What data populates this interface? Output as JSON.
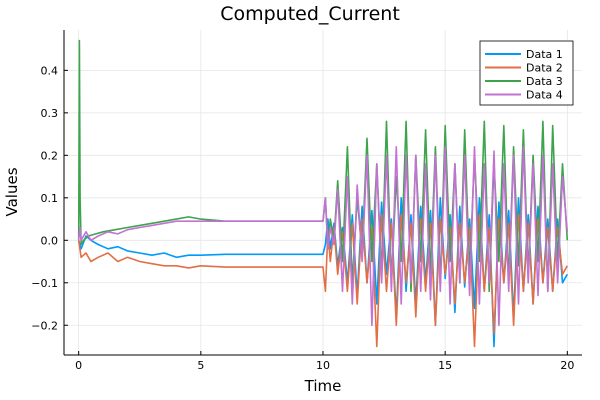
{
  "chart_data": {
    "type": "line",
    "title": "Computed_Current",
    "xlabel": "Time",
    "ylabel": "Values",
    "xlim": [
      -0.6,
      20.6
    ],
    "ylim": [
      -0.27,
      0.495
    ],
    "xticks": [
      0,
      5,
      10,
      15,
      20
    ],
    "xtick_labels": [
      "0",
      "5",
      "10",
      "15",
      "20"
    ],
    "yticks": [
      -0.2,
      -0.1,
      0.0,
      0.1,
      0.2,
      0.3,
      0.4
    ],
    "ytick_labels": [
      "−0.2",
      "−0.1",
      "0.0",
      "0.1",
      "0.2",
      "0.3",
      "0.4"
    ],
    "grid": true,
    "legend_position": "top-right",
    "series": [
      {
        "name": "Data 1",
        "color": "#009AFA",
        "x": [
          0,
          0.05,
          0.1,
          0.3,
          0.5,
          0.8,
          1.2,
          1.6,
          2,
          2.5,
          3,
          3.5,
          4,
          4.5,
          5,
          6,
          7,
          8,
          9,
          10,
          10.1,
          10.2,
          10.3,
          10.45,
          10.6,
          10.8,
          11,
          11.2,
          11.4,
          11.6,
          11.8,
          12,
          12.2,
          12.4,
          12.6,
          12.8,
          13,
          13.2,
          13.4,
          13.6,
          13.8,
          14,
          14.2,
          14.4,
          14.6,
          14.8,
          15,
          15.2,
          15.4,
          15.6,
          15.8,
          16,
          16.2,
          16.4,
          16.6,
          16.8,
          17,
          17.2,
          17.4,
          17.6,
          17.8,
          18,
          18.2,
          18.4,
          18.6,
          18.8,
          19,
          19.2,
          19.4,
          19.6,
          19.8,
          20
        ],
        "y": [
          0.0,
          -0.01,
          -0.02,
          0.01,
          0.0,
          -0.01,
          -0.02,
          -0.015,
          -0.025,
          -0.03,
          -0.035,
          -0.03,
          -0.04,
          -0.035,
          -0.035,
          -0.033,
          -0.033,
          -0.033,
          -0.033,
          -0.033,
          -0.01,
          0.05,
          -0.02,
          0.04,
          -0.06,
          0.03,
          -0.1,
          0.06,
          -0.13,
          0.08,
          -0.1,
          0.07,
          -0.15,
          0.09,
          -0.08,
          0.05,
          -0.18,
          0.1,
          -0.12,
          0.06,
          -0.15,
          0.08,
          -0.1,
          0.07,
          -0.2,
          0.1,
          -0.09,
          0.06,
          -0.17,
          0.08,
          -0.11,
          0.05,
          -0.16,
          0.1,
          -0.12,
          0.06,
          -0.25,
          0.09,
          -0.1,
          0.07,
          -0.18,
          0.1,
          -0.12,
          0.06,
          -0.15,
          0.08,
          -0.1,
          0.05,
          -0.12,
          0.05,
          -0.1,
          -0.08
        ]
      },
      {
        "name": "Data 2",
        "color": "#E26F46",
        "x": [
          0,
          0.05,
          0.1,
          0.3,
          0.5,
          0.8,
          1.2,
          1.6,
          2,
          2.5,
          3,
          3.5,
          4,
          4.5,
          5,
          6,
          7,
          8,
          9,
          10,
          10.1,
          10.2,
          10.3,
          10.45,
          10.6,
          10.8,
          11,
          11.2,
          11.4,
          11.6,
          11.8,
          12,
          12.2,
          12.4,
          12.6,
          12.8,
          13,
          13.2,
          13.4,
          13.6,
          13.8,
          14,
          14.2,
          14.4,
          14.6,
          14.8,
          15,
          15.2,
          15.4,
          15.6,
          15.8,
          16,
          16.2,
          16.4,
          16.6,
          16.8,
          17,
          17.2,
          17.4,
          17.6,
          17.8,
          18,
          18.2,
          18.4,
          18.6,
          18.8,
          19,
          19.2,
          19.4,
          19.6,
          19.8,
          20
        ],
        "y": [
          0.0,
          -0.02,
          -0.04,
          -0.03,
          -0.05,
          -0.04,
          -0.03,
          -0.05,
          -0.04,
          -0.05,
          -0.055,
          -0.06,
          -0.06,
          -0.065,
          -0.06,
          -0.063,
          -0.063,
          -0.063,
          -0.063,
          -0.063,
          -0.12,
          0.02,
          -0.05,
          0.03,
          -0.08,
          0.02,
          -0.12,
          0.04,
          -0.15,
          0.05,
          -0.1,
          0.03,
          -0.25,
          0.06,
          -0.12,
          0.04,
          -0.2,
          0.06,
          -0.1,
          0.04,
          -0.18,
          0.05,
          -0.12,
          0.04,
          -0.2,
          0.05,
          -0.08,
          0.03,
          -0.15,
          0.04,
          -0.1,
          0.03,
          -0.25,
          0.06,
          -0.12,
          0.03,
          -0.22,
          0.05,
          -0.1,
          0.04,
          -0.2,
          0.06,
          -0.12,
          0.04,
          -0.15,
          0.05,
          -0.1,
          0.03,
          -0.12,
          0.03,
          -0.08,
          -0.06
        ]
      },
      {
        "name": "Data 3",
        "color": "#3DA44D",
        "x": [
          0,
          0.03,
          0.06,
          0.1,
          0.2,
          0.4,
          0.7,
          1,
          1.5,
          2,
          2.5,
          3,
          3.5,
          4,
          4.5,
          5,
          6,
          7,
          8,
          9,
          10,
          10.1,
          10.2,
          10.3,
          10.45,
          10.6,
          10.8,
          11,
          11.2,
          11.4,
          11.6,
          11.8,
          12,
          12.2,
          12.4,
          12.6,
          12.8,
          13,
          13.2,
          13.4,
          13.6,
          13.8,
          14,
          14.2,
          14.4,
          14.6,
          14.8,
          15,
          15.2,
          15.4,
          15.6,
          15.8,
          16,
          16.2,
          16.4,
          16.6,
          16.8,
          17,
          17.2,
          17.4,
          17.6,
          17.8,
          18,
          18.2,
          18.4,
          18.6,
          18.8,
          19,
          19.2,
          19.4,
          19.6,
          19.8,
          20
        ],
        "y": [
          0.0,
          0.47,
          0.1,
          -0.01,
          0.0,
          0.01,
          0.015,
          0.02,
          0.025,
          0.03,
          0.035,
          0.04,
          0.045,
          0.05,
          0.055,
          0.05,
          0.045,
          0.045,
          0.045,
          0.045,
          0.045,
          0.1,
          -0.02,
          0.05,
          0.0,
          0.14,
          -0.05,
          0.22,
          -0.1,
          0.1,
          -0.03,
          0.24,
          -0.05,
          0.18,
          -0.08,
          0.28,
          -0.1,
          0.15,
          -0.05,
          0.28,
          -0.12,
          0.2,
          -0.05,
          0.26,
          -0.08,
          0.22,
          -0.1,
          0.27,
          -0.05,
          0.18,
          -0.1,
          0.26,
          -0.08,
          0.2,
          -0.05,
          0.28,
          -0.12,
          0.18,
          -0.05,
          0.27,
          -0.1,
          0.22,
          -0.06,
          0.26,
          -0.08,
          0.2,
          -0.05,
          0.28,
          -0.12,
          0.27,
          -0.05,
          0.18,
          0.0
        ]
      },
      {
        "name": "Data 4",
        "color": "#C371D2",
        "x": [
          0,
          0.05,
          0.1,
          0.3,
          0.5,
          0.8,
          1.2,
          1.6,
          2,
          2.5,
          3,
          3.5,
          4,
          4.5,
          5,
          6,
          7,
          8,
          9,
          10,
          10.1,
          10.2,
          10.3,
          10.45,
          10.6,
          10.8,
          11,
          11.2,
          11.4,
          11.6,
          11.8,
          12,
          12.2,
          12.4,
          12.6,
          12.8,
          13,
          13.2,
          13.4,
          13.6,
          13.8,
          14,
          14.2,
          14.4,
          14.6,
          14.8,
          15,
          15.2,
          15.4,
          15.6,
          15.8,
          16,
          16.2,
          16.4,
          16.6,
          16.8,
          17,
          17.2,
          17.4,
          17.6,
          17.8,
          18,
          18.2,
          18.4,
          18.6,
          18.8,
          19,
          19.2,
          19.4,
          19.6,
          19.8,
          20
        ],
        "y": [
          0.0,
          0.03,
          0.0,
          0.02,
          0.0,
          0.01,
          0.02,
          0.015,
          0.025,
          0.03,
          0.035,
          0.04,
          0.045,
          0.045,
          0.045,
          0.045,
          0.045,
          0.045,
          0.045,
          0.045,
          0.1,
          -0.02,
          0.03,
          -0.01,
          0.12,
          -0.12,
          0.15,
          -0.15,
          0.13,
          -0.05,
          0.2,
          -0.2,
          0.18,
          -0.1,
          0.2,
          -0.12,
          0.22,
          -0.15,
          0.2,
          -0.1,
          0.2,
          -0.12,
          0.18,
          -0.14,
          0.2,
          -0.12,
          0.22,
          -0.15,
          0.18,
          -0.1,
          0.2,
          -0.13,
          0.22,
          -0.15,
          0.18,
          -0.1,
          0.21,
          -0.2,
          0.18,
          -0.12,
          0.2,
          -0.15,
          0.22,
          -0.1,
          0.18,
          -0.13,
          0.2,
          -0.12,
          0.18,
          -0.1,
          0.15,
          0.02
        ]
      }
    ]
  }
}
